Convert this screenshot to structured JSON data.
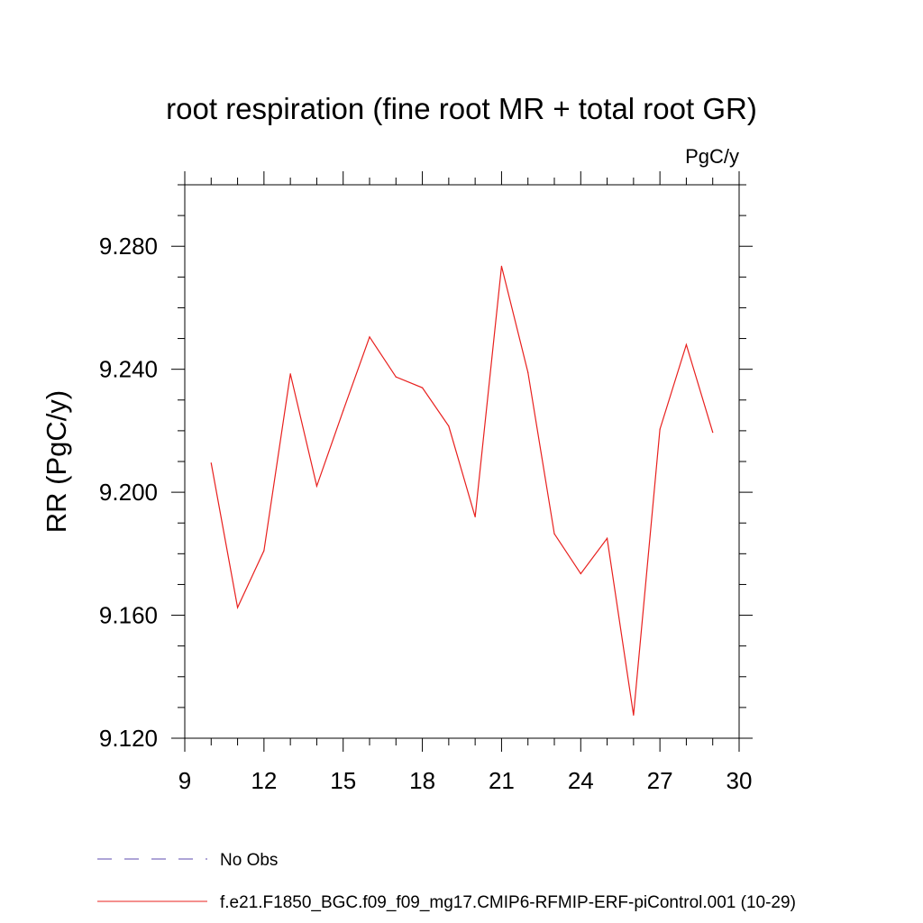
{
  "chart_data": {
    "type": "line",
    "title": "root respiration (fine root MR + total root GR)",
    "units_label": "PgC/y",
    "ylabel": "RR  (PgC/y)",
    "xlabel": "",
    "xlim": [
      9,
      30
    ],
    "ylim": [
      9.12,
      9.3
    ],
    "xticks": [
      9,
      12,
      15,
      18,
      21,
      24,
      27,
      30
    ],
    "yticks": [
      9.12,
      9.16,
      9.2,
      9.24,
      9.28
    ],
    "ytick_labels": [
      "9.120",
      "9.160",
      "9.200",
      "9.240",
      "9.280"
    ],
    "xminor_step": 1,
    "yminor_step": 0.01,
    "grid": false,
    "series": [
      {
        "name": "f.e21.F1850_BGC.f09_f09_mg17.CMIP6-RFMIP-ERF-piControl.001 (10-29)",
        "color": "#e8201e",
        "x": [
          10,
          11,
          12,
          13,
          14,
          15,
          16,
          17,
          18,
          19,
          20,
          21,
          22,
          23,
          24,
          25,
          26,
          27,
          28,
          29
        ],
        "values": [
          9.2095,
          9.1625,
          9.181,
          9.2385,
          9.202,
          9.2265,
          9.2505,
          9.2375,
          9.234,
          9.2215,
          9.192,
          9.2735,
          9.239,
          9.1865,
          9.1735,
          9.185,
          9.1275,
          9.2205,
          9.248,
          9.2195
        ]
      }
    ],
    "legend": [
      {
        "label": "No Obs",
        "style": "dashed",
        "color": "#7e6fbf"
      },
      {
        "label": "f.e21.F1850_BGC.f09_f09_mg17.CMIP6-RFMIP-ERF-piControl.001 (10-29)",
        "style": "solid",
        "color": "#e8201e"
      }
    ],
    "legend_position": "bottom-left"
  }
}
